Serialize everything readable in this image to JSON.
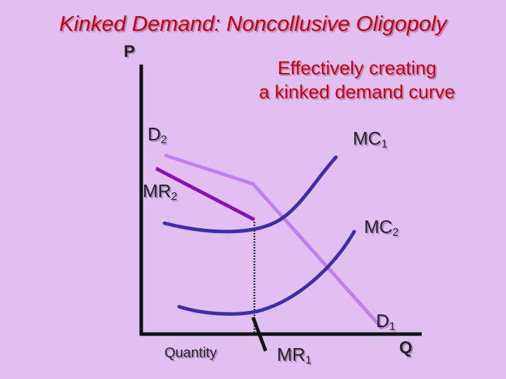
{
  "title": "Kinked Demand: Noncollusive Oligopoly",
  "subtitle": {
    "line1": "Effectively creating",
    "line2": "a kinked demand curve"
  },
  "axes": {
    "y_label": "P",
    "x_label": "Q",
    "quantity_label": "Quantity"
  },
  "curves": {
    "d2": {
      "base": "D",
      "sub": "2"
    },
    "d1": {
      "base": "D",
      "sub": "1"
    },
    "mr2": {
      "base": "MR",
      "sub": "2"
    },
    "mr1": {
      "base": "MR",
      "sub": "1"
    },
    "mc1": {
      "base": "MC",
      "sub": "1"
    },
    "mc2": {
      "base": "MC",
      "sub": "2"
    }
  },
  "colors": {
    "background": "#e1bff1",
    "title": "#cc0000",
    "demand": "#c27ef0",
    "marginal_revenue_2": "#8a0cc4",
    "marginal_cost": "#3c2cb0",
    "axis": "#111111"
  }
}
